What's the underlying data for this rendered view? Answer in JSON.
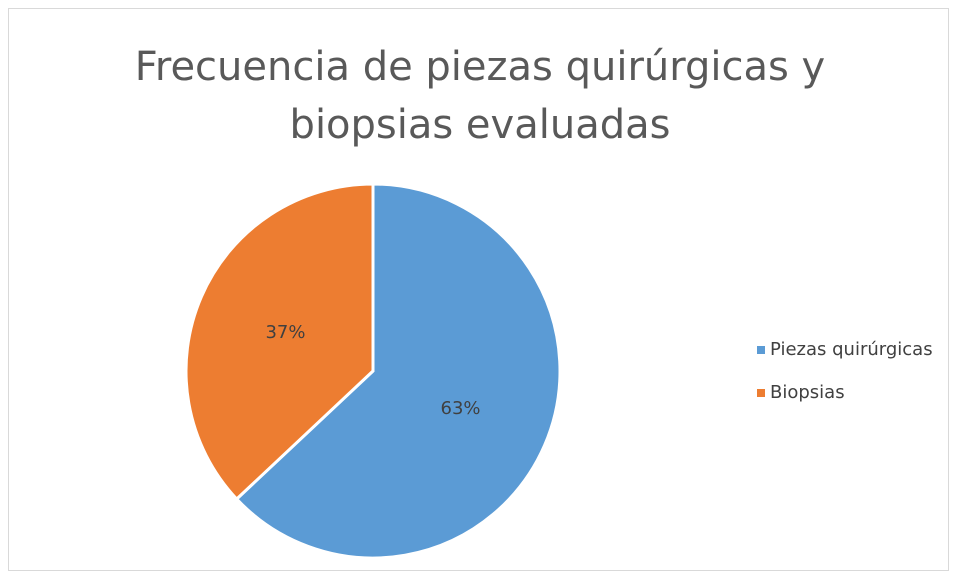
{
  "chart_data": {
    "type": "pie",
    "title": "Frecuencia de piezas quirúrgicas y biopsias evaluadas",
    "categories": [
      "Piezas quirúrgicas",
      "Biopsias"
    ],
    "values": [
      63,
      37
    ],
    "value_labels": [
      "63%",
      "37%"
    ],
    "colors": [
      "#5b9bd5",
      "#ed7d31"
    ],
    "legend": "right"
  }
}
